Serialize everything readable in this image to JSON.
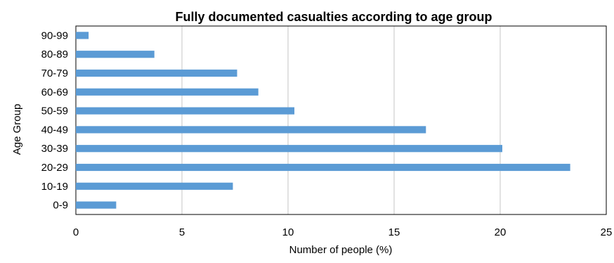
{
  "chart_data": {
    "type": "bar",
    "orientation": "horizontal",
    "title": "Fully documented casualties according to age group",
    "xlabel": "Number of people (%)",
    "ylabel": "Age Group",
    "categories": [
      "0-9",
      "10-19",
      "20-29",
      "30-39",
      "40-49",
      "50-59",
      "60-69",
      "70-79",
      "80-89",
      "90-99"
    ],
    "values": [
      1.9,
      7.4,
      23.3,
      20.1,
      16.5,
      10.3,
      8.6,
      7.6,
      3.7,
      0.6
    ],
    "xlim": [
      0,
      25
    ],
    "xticks": [
      "0",
      "5",
      "10",
      "15",
      "20",
      "25"
    ],
    "grid": true,
    "legend": "none",
    "bar_color": "#5b9bd5",
    "grid_color": "#d9d9d9"
  }
}
